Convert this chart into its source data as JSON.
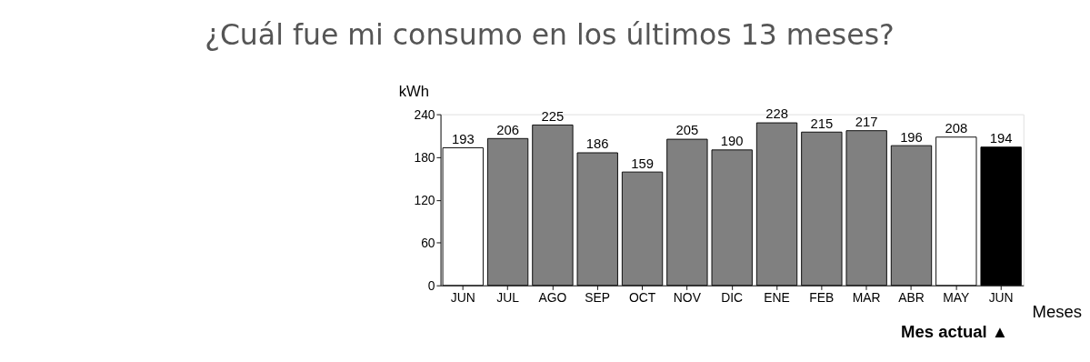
{
  "chart_data": {
    "type": "bar",
    "title": "¿Cuál fue mi consumo en los últimos 13 meses?",
    "xlabel": "Meses",
    "ylabel": "kWh",
    "categories": [
      "JUN",
      "JUL",
      "AGO",
      "SEP",
      "OCT",
      "NOV",
      "DIC",
      "ENE",
      "FEB",
      "MAR",
      "ABR",
      "MAY",
      "JUN"
    ],
    "values": [
      193,
      206,
      225,
      186,
      159,
      205,
      190,
      228,
      215,
      217,
      196,
      208,
      194
    ],
    "colors": [
      "#ffffff",
      "#808080",
      "#808080",
      "#808080",
      "#808080",
      "#808080",
      "#808080",
      "#808080",
      "#808080",
      "#808080",
      "#808080",
      "#ffffff",
      "#000000"
    ],
    "ylim": [
      0,
      240
    ],
    "yticks": [
      0,
      60,
      120,
      180,
      240
    ],
    "grid": false,
    "legend": false,
    "data_labels": true,
    "annotations": [
      "Mes actual ▲"
    ]
  }
}
